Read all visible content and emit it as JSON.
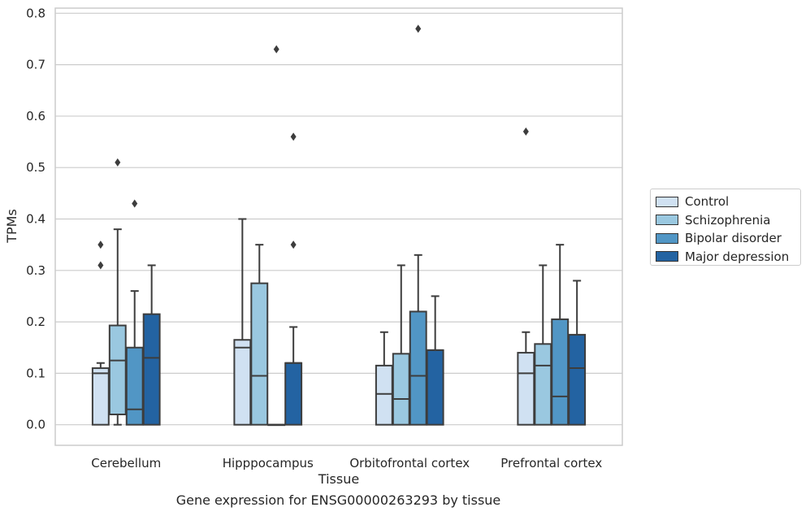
{
  "chart_data": {
    "type": "box",
    "xlabel": "Tissue",
    "ylabel": "TPMs",
    "caption": "Gene expression for ENSG00000263293 by tissue",
    "ylim": [
      -0.04,
      0.81
    ],
    "yticks": [
      "0.0",
      "0.1",
      "0.2",
      "0.3",
      "0.4",
      "0.5",
      "0.6",
      "0.7",
      "0.8"
    ],
    "grid": true,
    "legend_position": "right",
    "categories": [
      "Cerebellum",
      "Hipppocampus",
      "Orbitofrontal cortex",
      "Prefrontal cortex"
    ],
    "series": [
      {
        "name": "Control",
        "color": "#d0e1f2",
        "boxes": [
          {
            "q1": 0.0,
            "median": 0.1,
            "q3": 0.11,
            "whisker_low": 0.0,
            "whisker_high": 0.12,
            "outliers": [
              0.35,
              0.31
            ]
          },
          {
            "q1": 0.0,
            "median": 0.15,
            "q3": 0.165,
            "whisker_low": 0.0,
            "whisker_high": 0.4,
            "outliers": []
          },
          {
            "q1": 0.0,
            "median": 0.06,
            "q3": 0.115,
            "whisker_low": 0.0,
            "whisker_high": 0.18,
            "outliers": []
          },
          {
            "q1": 0.0,
            "median": 0.1,
            "q3": 0.14,
            "whisker_low": 0.0,
            "whisker_high": 0.18,
            "outliers": [
              0.57
            ]
          }
        ]
      },
      {
        "name": "Schizophrenia",
        "color": "#9ac8e0",
        "boxes": [
          {
            "q1": 0.02,
            "median": 0.125,
            "q3": 0.193,
            "whisker_low": 0.0,
            "whisker_high": 0.38,
            "outliers": [
              0.51
            ]
          },
          {
            "q1": 0.0,
            "median": 0.095,
            "q3": 0.275,
            "whisker_low": 0.0,
            "whisker_high": 0.35,
            "outliers": []
          },
          {
            "q1": 0.0,
            "median": 0.05,
            "q3": 0.138,
            "whisker_low": 0.0,
            "whisker_high": 0.31,
            "outliers": []
          },
          {
            "q1": 0.0,
            "median": 0.115,
            "q3": 0.157,
            "whisker_low": 0.0,
            "whisker_high": 0.31,
            "outliers": []
          }
        ]
      },
      {
        "name": "Bipolar disorder",
        "color": "#5196c5",
        "boxes": [
          {
            "q1": 0.0,
            "median": 0.03,
            "q3": 0.15,
            "whisker_low": 0.0,
            "whisker_high": 0.26,
            "outliers": [
              0.43
            ]
          },
          {
            "q1": 0.0,
            "median": 0.0,
            "q3": 0.0,
            "whisker_low": 0.0,
            "whisker_high": 0.0,
            "outliers": [
              0.73
            ]
          },
          {
            "q1": 0.0,
            "median": 0.095,
            "q3": 0.22,
            "whisker_low": 0.0,
            "whisker_high": 0.33,
            "outliers": [
              0.77
            ]
          },
          {
            "q1": 0.0,
            "median": 0.055,
            "q3": 0.205,
            "whisker_low": 0.0,
            "whisker_high": 0.35,
            "outliers": []
          }
        ]
      },
      {
        "name": "Major depression",
        "color": "#2363a2",
        "boxes": [
          {
            "q1": 0.0,
            "median": 0.13,
            "q3": 0.215,
            "whisker_low": 0.0,
            "whisker_high": 0.31,
            "outliers": []
          },
          {
            "q1": 0.0,
            "median": 0.12,
            "q3": 0.12,
            "whisker_low": 0.0,
            "whisker_high": 0.19,
            "outliers": [
              0.56,
              0.35
            ]
          },
          {
            "q1": 0.0,
            "median": 0.145,
            "q3": 0.145,
            "whisker_low": 0.0,
            "whisker_high": 0.25,
            "outliers": []
          },
          {
            "q1": 0.0,
            "median": 0.11,
            "q3": 0.175,
            "whisker_low": 0.0,
            "whisker_high": 0.28,
            "outliers": []
          }
        ]
      }
    ]
  }
}
